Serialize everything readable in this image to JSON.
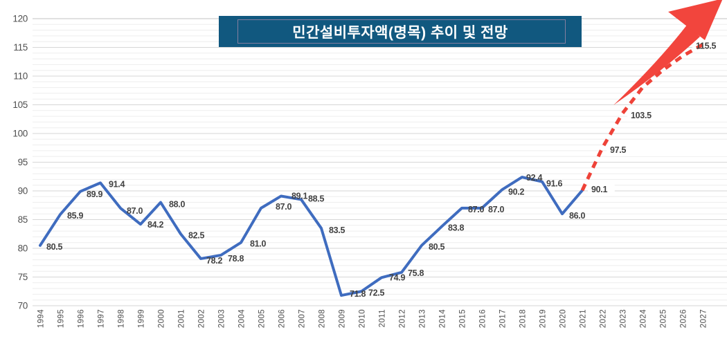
{
  "title": {
    "text": "민간설비투자액(명목) 추이 및 전망",
    "bg_color": "#11587f",
    "text_color": "#ffffff"
  },
  "chart_data": {
    "type": "line",
    "title": "민간설비투자액(명목) 추이 및 전망",
    "xlabel": "",
    "ylabel": "",
    "ylim": [
      70,
      120
    ],
    "y_ticks": [
      "70",
      "75",
      "80",
      "85",
      "90",
      "95",
      "100",
      "105",
      "110",
      "115",
      "120"
    ],
    "x_ticks": [
      "1994",
      "1995",
      "1996",
      "1997",
      "1998",
      "1999",
      "2000",
      "2001",
      "2002",
      "2003",
      "2004",
      "2005",
      "2006",
      "2007",
      "2008",
      "2009",
      "2010",
      "2011",
      "2012",
      "2013",
      "2014",
      "2015",
      "2016",
      "2017",
      "2018",
      "2019",
      "2020",
      "2021",
      "2022",
      "2023",
      "2024",
      "2025",
      "2026",
      "2027"
    ],
    "grid": {
      "horizontal_minor_step": 1,
      "horizontal_major_step": 5,
      "vertical": false
    },
    "legend": "none",
    "series": [
      {
        "name": "historical",
        "style": "solid",
        "color": "#3f6cbf",
        "points": [
          {
            "year": 1994,
            "value": 80.5,
            "label": "80.5",
            "dx": 9,
            "dy": 6
          },
          {
            "year": 1995,
            "value": 85.9,
            "label": "85.9",
            "dx": 10,
            "dy": 6
          },
          {
            "year": 1996,
            "value": 89.9,
            "label": "89.9",
            "dx": 9,
            "dy": 8
          },
          {
            "year": 1997,
            "value": 91.4,
            "label": "91.4",
            "dx": 12,
            "dy": 6
          },
          {
            "year": 1998,
            "value": 87.0,
            "label": "87.0",
            "dx": 9,
            "dy": 8
          },
          {
            "year": 1999,
            "value": 84.2,
            "label": "84.2",
            "dx": 10,
            "dy": 5
          },
          {
            "year": 2000,
            "value": 88.0,
            "label": "88.0",
            "dx": 12,
            "dy": 7
          },
          {
            "year": 2001,
            "value": 82.5,
            "label": "82.5",
            "dx": 11,
            "dy": 6
          },
          {
            "year": 2002,
            "value": 78.2,
            "label": "78.2",
            "dx": 8,
            "dy": 7
          },
          {
            "year": 2003,
            "value": 78.8,
            "label": "78.8",
            "dx": 10,
            "dy": 9
          },
          {
            "year": 2004,
            "value": 81.0,
            "label": "81.0",
            "dx": 13,
            "dy": 6
          },
          {
            "year": 2005,
            "value": 87.0,
            "label": "87.0",
            "dx": 21,
            "dy": 2
          },
          {
            "year": 2006,
            "value": 89.1,
            "label": "89.1",
            "dx": 15,
            "dy": 4
          },
          {
            "year": 2007,
            "value": 88.5,
            "label": "88.5",
            "dx": 10,
            "dy": 3
          },
          {
            "year": 2008,
            "value": 83.5,
            "label": "83.5",
            "dx": 11,
            "dy": 7
          },
          {
            "year": 2009,
            "value": 71.8,
            "label": "71.8",
            "dx": 12,
            "dy": 2
          },
          {
            "year": 2010,
            "value": 72.5,
            "label": "72.5",
            "dx": 10,
            "dy": 6
          },
          {
            "year": 2011,
            "value": 74.9,
            "label": "74.9",
            "dx": 11,
            "dy": 4
          },
          {
            "year": 2012,
            "value": 75.8,
            "label": "75.8",
            "dx": 9,
            "dy": 5
          },
          {
            "year": 2013,
            "value": 80.5,
            "label": "80.5",
            "dx": 10,
            "dy": 6
          },
          {
            "year": 2014,
            "value": 83.8,
            "label": "83.8",
            "dx": 9,
            "dy": 6
          },
          {
            "year": 2015,
            "value": 87.0,
            "label": "87.0",
            "dx": 9,
            "dy": 6
          },
          {
            "year": 2016,
            "value": 87.0,
            "label": "87.0",
            "dx": 9,
            "dy": 6
          },
          {
            "year": 2017,
            "value": 90.2,
            "label": "90.2",
            "dx": 9,
            "dy": 7
          },
          {
            "year": 2018,
            "value": 92.4,
            "label": "92.4",
            "dx": 6,
            "dy": 5
          },
          {
            "year": 2019,
            "value": 91.6,
            "label": "91.6",
            "dx": 6,
            "dy": 7
          },
          {
            "year": 2020,
            "value": 86.0,
            "label": "86.0",
            "dx": 10,
            "dy": 7
          },
          {
            "year": 2021,
            "value": 90.1,
            "label": "90.1",
            "dx": 13,
            "dy": 3,
            "white_bg": "local"
          }
        ]
      },
      {
        "name": "forecast",
        "style": "dashed",
        "color": "#ee4238",
        "points": [
          {
            "year": 2021,
            "value": 90.1,
            "label": null
          },
          {
            "year": 2022,
            "value": 97.5,
            "label": "97.5",
            "dx": 11,
            "dy": 7,
            "white_bg": "extend"
          },
          {
            "year": 2023,
            "value": 103.5,
            "label": "103.5",
            "dx": 12,
            "dy": 7,
            "white_bg": "extend"
          },
          {
            "year": 2024,
            "value": 108.0,
            "label": null,
            "estimated": true
          },
          {
            "year": 2025,
            "value": 111.0,
            "label": null,
            "estimated": true
          },
          {
            "year": 2026,
            "value": 113.5,
            "label": null,
            "estimated": true
          },
          {
            "year": 2027,
            "value": 115.5,
            "label": "115.5",
            "dx": -10,
            "dy": 6,
            "white_bg": "extend"
          }
        ]
      }
    ],
    "annotation_arrow": {
      "description": "large upward trend arrow over forecast",
      "color": "#f2453d"
    },
    "colors": {
      "grid_minor": "#ededed",
      "grid_major": "#d6d6d6",
      "grid_top": "#c2c2c2",
      "tick_text": "#4f4f4f",
      "data_label_text": "#424242"
    }
  }
}
